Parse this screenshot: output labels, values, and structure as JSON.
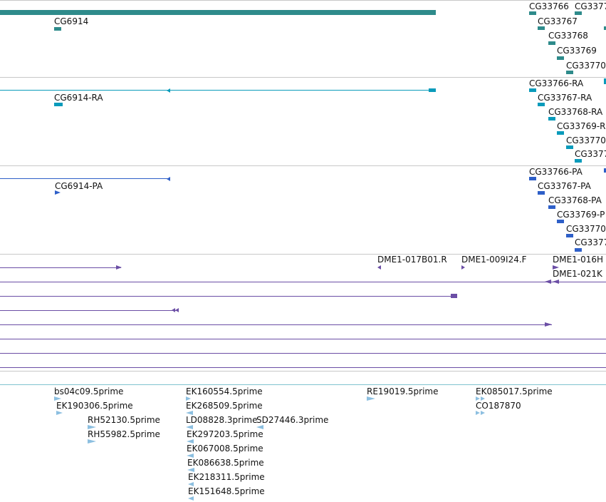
{
  "colors": {
    "gene": "#2e8b8b",
    "transcript": "#0a9bbb",
    "protein": "#2e5fc8",
    "clone": "#6b4ea5",
    "est": "#8cbfe0",
    "separator": "#c8c8c8",
    "est_separator": "#7fc3cf"
  },
  "gene_track": {
    "labels": [
      "CG6914",
      "CG33766",
      "CG33767",
      "CG33768",
      "CG33769",
      "CG33770",
      "CG3377"
    ]
  },
  "transcript_track": {
    "labels": [
      "CG6914-RA",
      "CG33766-RA",
      "CG33767-RA",
      "CG33768-RA",
      "CG33769-R",
      "CG33770",
      "CG3377"
    ]
  },
  "protein_track": {
    "labels": [
      "CG6914-PA",
      "CG33766-PA",
      "CG33767-PA",
      "CG33768-PA",
      "CG33769-P",
      "CG33770",
      "CG3377"
    ]
  },
  "clone_track": {
    "labels": [
      "DME1-017B01.R",
      "DME1-009I24.F",
      "DME1-016H",
      "DME1-021K"
    ]
  },
  "est_track": {
    "labels": [
      "bs04c09.5prime",
      "EK190306.5prime",
      "RH52130.5prime",
      "RH55982.5prime",
      "EK160554.5prime",
      "EK268509.5prime",
      "LD08828.3prime",
      "SD27446.3prime",
      "EK297203.5prime",
      "EK067008.5prime",
      "EK086638.5prime",
      "EK218311.5prime",
      "EK151648.5prime",
      "RE19019.5prime",
      "EK085017.5prime",
      "CO187870"
    ]
  }
}
